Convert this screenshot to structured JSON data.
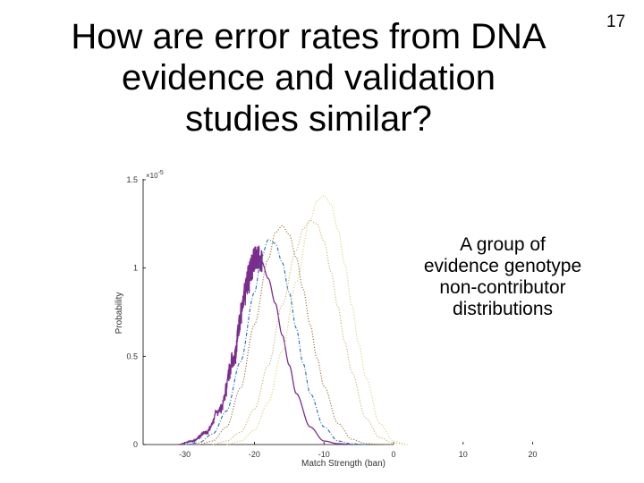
{
  "slide": {
    "title_lines": [
      "How are error rates from DNA",
      "evidence and validation",
      "studies similar?"
    ],
    "number": "17",
    "annotation_lines": [
      "A group of",
      "evidence genotype",
      "non-contributor",
      "distributions"
    ]
  },
  "chart_data": {
    "type": "line",
    "title": "",
    "xlabel": "Match Strength (ban)",
    "ylabel": "Probability",
    "y_exponent_label": "×10",
    "y_exponent_power": "-5",
    "xlim": [
      -36,
      27
    ],
    "ylim": [
      0,
      1.5
    ],
    "xticks": [
      -30,
      -20,
      -10,
      0,
      10,
      20
    ],
    "xtick_labels": [
      "-30",
      "-20",
      "-10",
      "0",
      "10",
      "20"
    ],
    "yticks": [
      0,
      0.5,
      1,
      1.5
    ],
    "ytick_labels": [
      "0",
      "0.5",
      "1",
      "1.5"
    ],
    "grid": false,
    "series": [
      {
        "color": "#7b2d8e",
        "style": "solid",
        "noisy": true,
        "x": [
          -31,
          -29,
          -27,
          -25,
          -23,
          -22,
          -21,
          -20.5,
          -20,
          -19.5,
          -19,
          -18,
          -17,
          -16,
          -15,
          -14,
          -12,
          -10,
          -8,
          -6
        ],
        "y": [
          0,
          0.02,
          0.07,
          0.2,
          0.5,
          0.74,
          0.93,
          1.01,
          1.05,
          1.06,
          1.04,
          0.94,
          0.8,
          0.62,
          0.45,
          0.29,
          0.1,
          0.02,
          0.005,
          0
        ]
      },
      {
        "color": "#1f6fae",
        "style": "dashdot",
        "x": [
          -30,
          -28,
          -26,
          -24,
          -22,
          -20,
          -19,
          -18,
          -17,
          -16,
          -15,
          -14,
          -13,
          -12,
          -10,
          -8,
          -6,
          -4
        ],
        "y": [
          0,
          0.01,
          0.06,
          0.19,
          0.47,
          0.86,
          1.06,
          1.16,
          1.14,
          1.03,
          0.86,
          0.66,
          0.46,
          0.29,
          0.1,
          0.02,
          0.004,
          0
        ]
      },
      {
        "color": "#9a6e3a",
        "style": "dotted",
        "x": [
          -28,
          -26,
          -24,
          -22,
          -20,
          -18,
          -17,
          -16,
          -15,
          -14,
          -13,
          -12,
          -11,
          -10,
          -8,
          -6,
          -4,
          -2,
          0
        ],
        "y": [
          0,
          0.02,
          0.1,
          0.32,
          0.68,
          1.05,
          1.2,
          1.24,
          1.19,
          1.06,
          0.88,
          0.68,
          0.49,
          0.33,
          0.12,
          0.03,
          0.005,
          0.001,
          0
        ]
      },
      {
        "color": "#c9b275",
        "style": "dotted",
        "x": [
          -26,
          -24,
          -22,
          -20,
          -18,
          -16,
          -14,
          -13,
          -12,
          -11,
          -10,
          -9,
          -8,
          -7,
          -6,
          -4,
          -2,
          0,
          2
        ],
        "y": [
          0,
          0.02,
          0.07,
          0.2,
          0.45,
          0.79,
          1.1,
          1.22,
          1.27,
          1.25,
          1.15,
          0.98,
          0.78,
          0.58,
          0.41,
          0.15,
          0.04,
          0.007,
          0
        ]
      },
      {
        "color": "#ddd07a",
        "style": "dotted",
        "x": [
          -24,
          -22,
          -20,
          -18,
          -16,
          -14,
          -12,
          -11,
          -10,
          -9,
          -8,
          -7,
          -6,
          -5,
          -4,
          -2,
          0,
          2
        ],
        "y": [
          0,
          0.02,
          0.08,
          0.24,
          0.53,
          0.92,
          1.27,
          1.38,
          1.41,
          1.36,
          1.22,
          1.02,
          0.79,
          0.57,
          0.38,
          0.12,
          0.02,
          0
        ]
      }
    ]
  }
}
